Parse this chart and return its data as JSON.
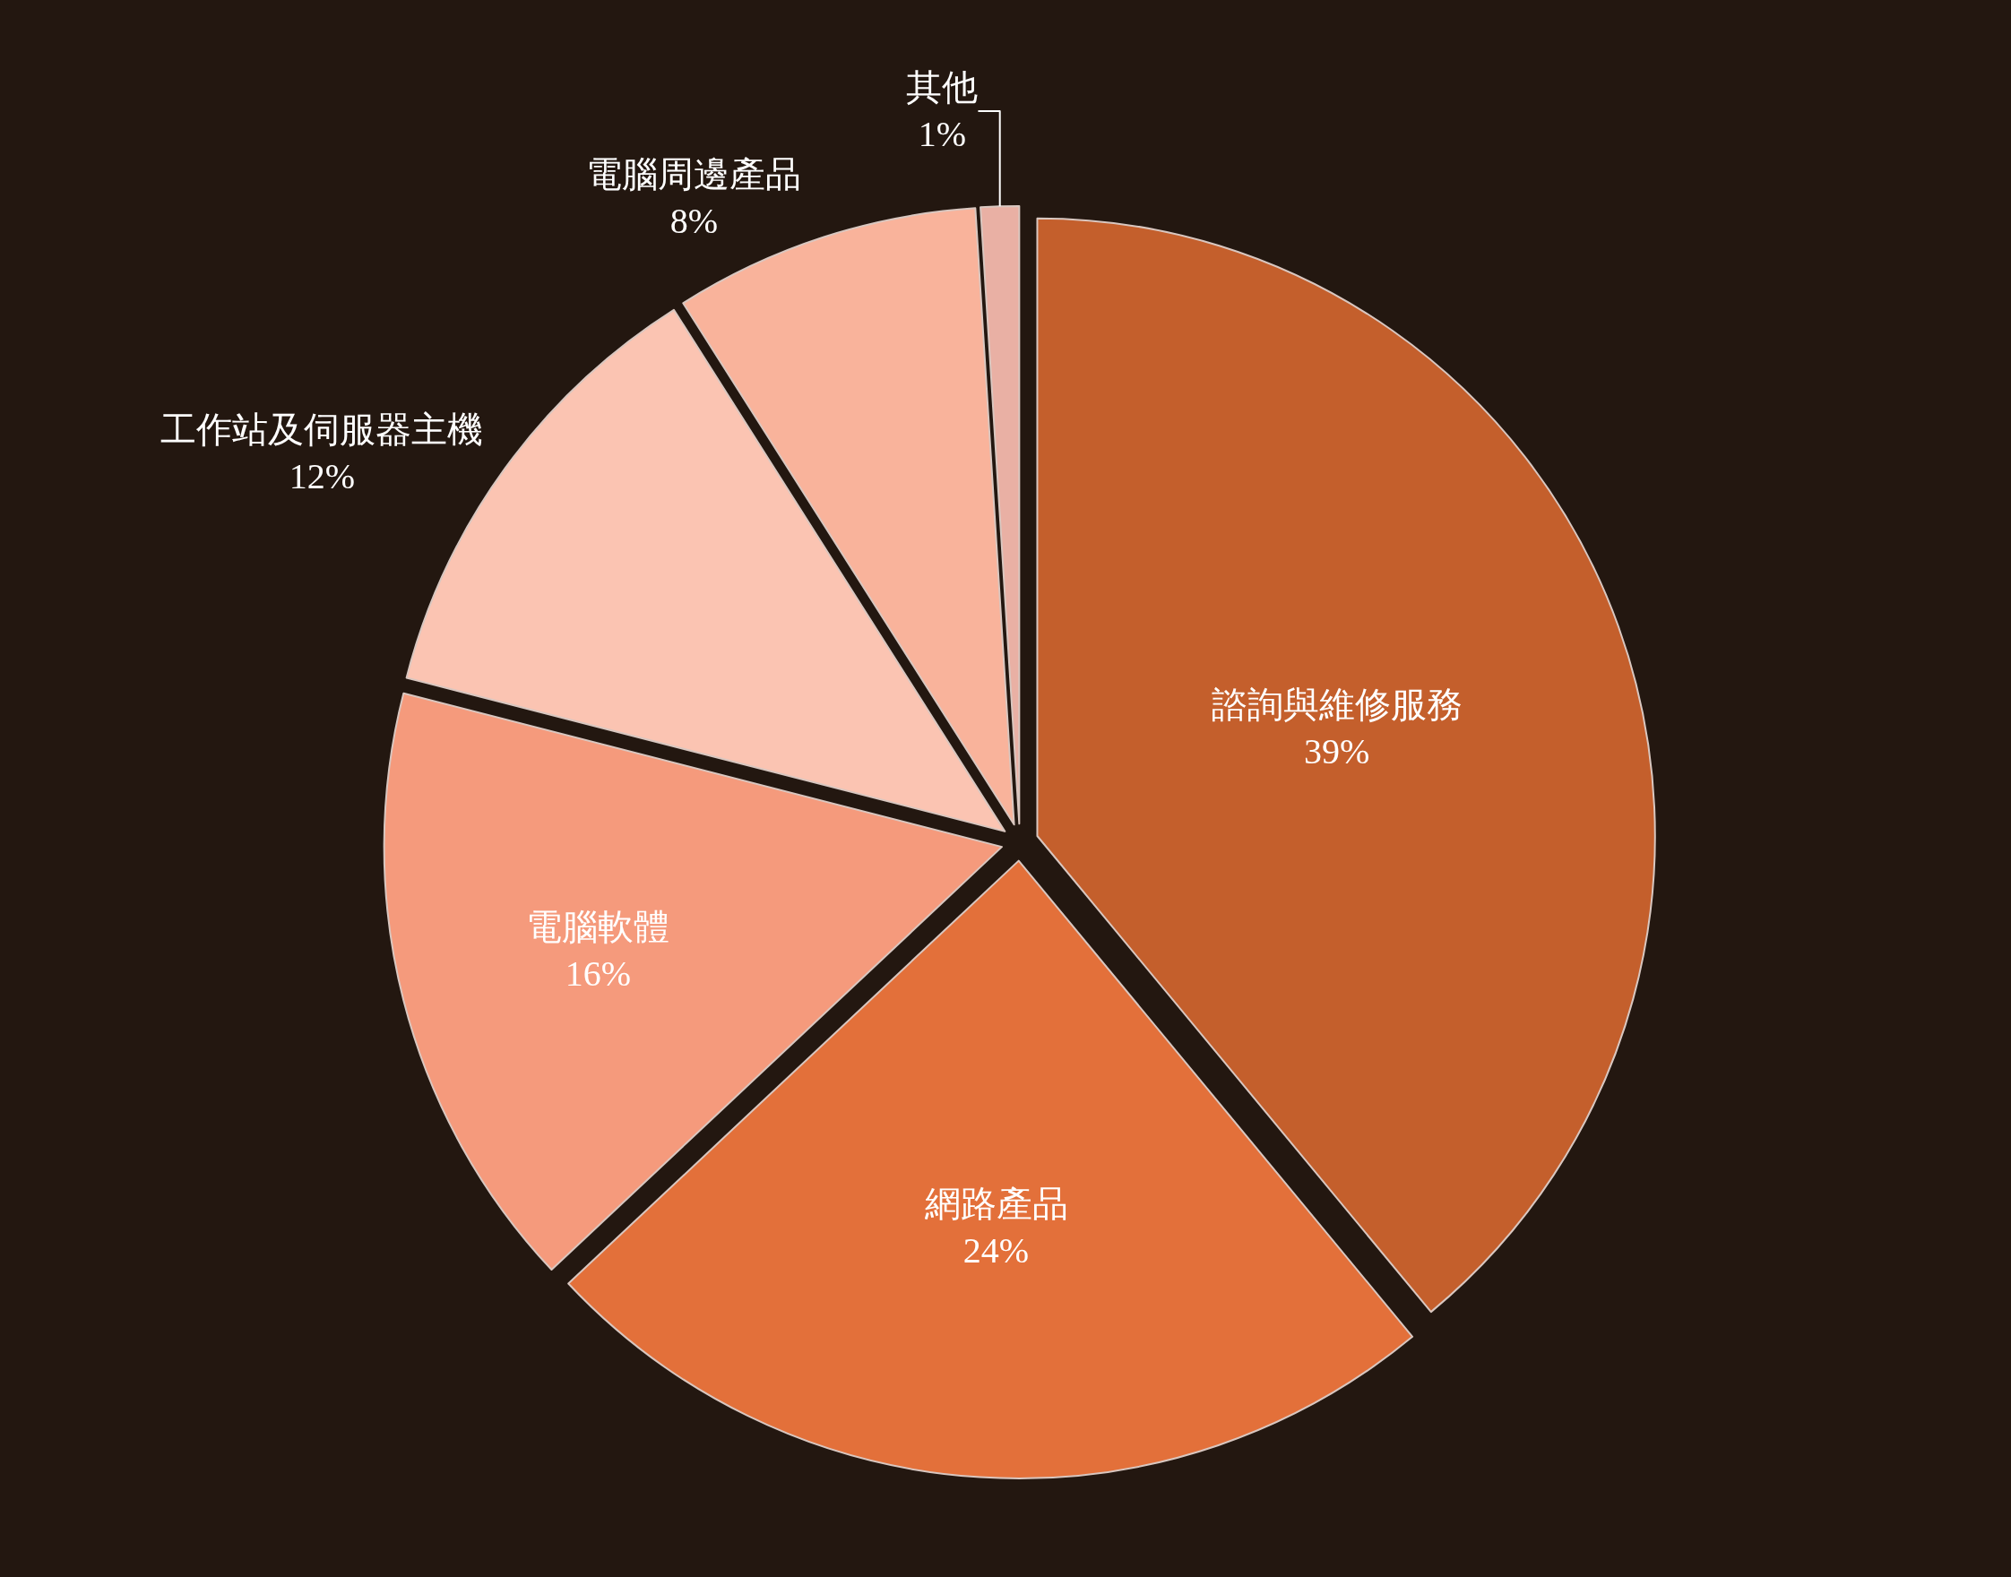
{
  "chart_data": {
    "type": "pie",
    "categories": [
      "諮詢與維修服務",
      "網路產品",
      "電腦軟體",
      "工作站及伺服器主機",
      "電腦周邊產品",
      "其他"
    ],
    "values": [
      39,
      24,
      16,
      12,
      8,
      1
    ],
    "value_labels": [
      "39%",
      "24%",
      "16%",
      "12%",
      "8%",
      "1%"
    ],
    "colors": [
      "#c45f2c",
      "#e3703a",
      "#f59a7c",
      "#fbc4b2",
      "#f9b39b",
      "#e9b0a4"
    ],
    "legend": false
  }
}
